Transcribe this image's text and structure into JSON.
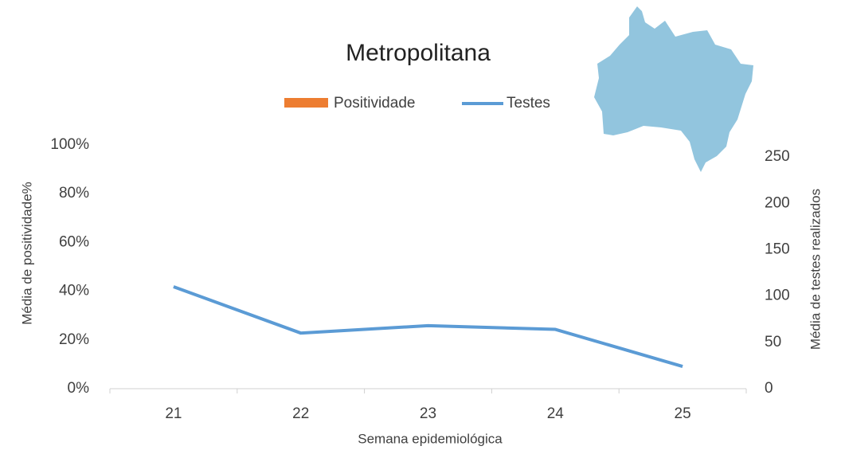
{
  "chart_data": {
    "type": "bar_line",
    "title": "Metropolitana",
    "categories": [
      "21",
      "22",
      "23",
      "24",
      "25"
    ],
    "series": [
      {
        "name": "Positividade",
        "color": "#ed7d31",
        "type": "bar",
        "values": [
          0,
          0,
          0,
          0,
          0
        ]
      },
      {
        "name": "Testes",
        "color": "#5b9bd5",
        "type": "line",
        "axis": "y2",
        "values": [
          110,
          60,
          68,
          64,
          24
        ]
      }
    ],
    "ylim": [
      0,
      100
    ],
    "yticks": [
      {
        "value": 0,
        "label": "0%"
      },
      {
        "value": 20,
        "label": "20%"
      },
      {
        "value": 40,
        "label": "40%"
      },
      {
        "value": 60,
        "label": "60%"
      },
      {
        "value": 80,
        "label": "80%"
      },
      {
        "value": 100,
        "label": "100%"
      }
    ],
    "y2lim": [
      0,
      263
    ],
    "y2ticks": [
      0,
      50,
      100,
      150,
      200,
      250
    ],
    "xlabel": "Semana epidemiológica",
    "ylabel": "Média de positividade%",
    "y2label": "Média de testes realizados",
    "legend": "top"
  }
}
